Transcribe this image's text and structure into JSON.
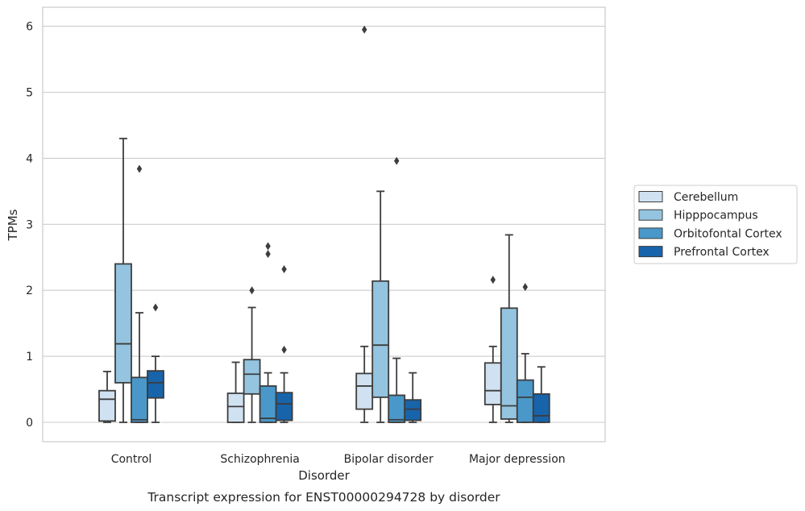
{
  "chart_data": {
    "type": "box",
    "title": "Transcript expression for ENST00000294728 by disorder",
    "xlabel": "Disorder",
    "ylabel": "TPMs",
    "ylim": [
      -0.3,
      6.27
    ],
    "yticks": [
      0,
      1,
      2,
      3,
      4,
      5,
      6
    ],
    "grid": true,
    "legend_position": "right",
    "categories": [
      "Control",
      "Schizophrenia",
      "Bipolar disorder",
      "Major depression"
    ],
    "series": [
      {
        "name": "Cerebellum",
        "color": "#d0e1f2",
        "boxes": [
          {
            "whislo": 0.0,
            "q1": 0.02,
            "med": 0.35,
            "q3": 0.48,
            "whishi": 0.77,
            "fliers": []
          },
          {
            "whislo": 0.0,
            "q1": 0.0,
            "med": 0.24,
            "q3": 0.44,
            "whishi": 0.91,
            "fliers": []
          },
          {
            "whislo": 0.0,
            "q1": 0.2,
            "med": 0.55,
            "q3": 0.74,
            "whishi": 1.15,
            "fliers": [
              5.95
            ]
          },
          {
            "whislo": 0.0,
            "q1": 0.27,
            "med": 0.48,
            "q3": 0.9,
            "whishi": 1.15,
            "fliers": [
              2.16
            ]
          }
        ]
      },
      {
        "name": "Hipppocampus",
        "color": "#94c4df",
        "boxes": [
          {
            "whislo": 0.0,
            "q1": 0.6,
            "med": 1.19,
            "q3": 2.4,
            "whishi": 4.3,
            "fliers": []
          },
          {
            "whislo": 0.0,
            "q1": 0.43,
            "med": 0.73,
            "q3": 0.95,
            "whishi": 1.74,
            "fliers": [
              2.0
            ]
          },
          {
            "whislo": 0.0,
            "q1": 0.38,
            "med": 1.17,
            "q3": 2.14,
            "whishi": 3.5,
            "fliers": []
          },
          {
            "whislo": 0.0,
            "q1": 0.05,
            "med": 0.25,
            "q3": 1.73,
            "whishi": 2.84,
            "fliers": []
          }
        ]
      },
      {
        "name": "Orbitofontal Cortex",
        "color": "#4a98c9",
        "boxes": [
          {
            "whislo": 0.0,
            "q1": 0.0,
            "med": 0.04,
            "q3": 0.68,
            "whishi": 1.66,
            "fliers": [
              3.84
            ]
          },
          {
            "whislo": 0.0,
            "q1": 0.0,
            "med": 0.06,
            "q3": 0.55,
            "whishi": 0.75,
            "fliers": [
              2.55,
              2.67
            ]
          },
          {
            "whislo": 0.0,
            "q1": 0.0,
            "med": 0.04,
            "q3": 0.41,
            "whishi": 0.97,
            "fliers": [
              3.96
            ]
          },
          {
            "whislo": 0.0,
            "q1": 0.0,
            "med": 0.38,
            "q3": 0.64,
            "whishi": 1.04,
            "fliers": [
              2.05
            ]
          }
        ]
      },
      {
        "name": "Prefrontal Cortex",
        "color": "#1764ab",
        "boxes": [
          {
            "whislo": 0.0,
            "q1": 0.37,
            "med": 0.6,
            "q3": 0.78,
            "whishi": 1.0,
            "fliers": [
              1.74
            ]
          },
          {
            "whislo": 0.0,
            "q1": 0.03,
            "med": 0.28,
            "q3": 0.45,
            "whishi": 0.75,
            "fliers": [
              1.1,
              2.32
            ]
          },
          {
            "whislo": 0.0,
            "q1": 0.03,
            "med": 0.2,
            "q3": 0.34,
            "whishi": 0.75,
            "fliers": []
          },
          {
            "whislo": 0.0,
            "q1": 0.0,
            "med": 0.1,
            "q3": 0.43,
            "whishi": 0.84,
            "fliers": []
          }
        ]
      }
    ]
  }
}
